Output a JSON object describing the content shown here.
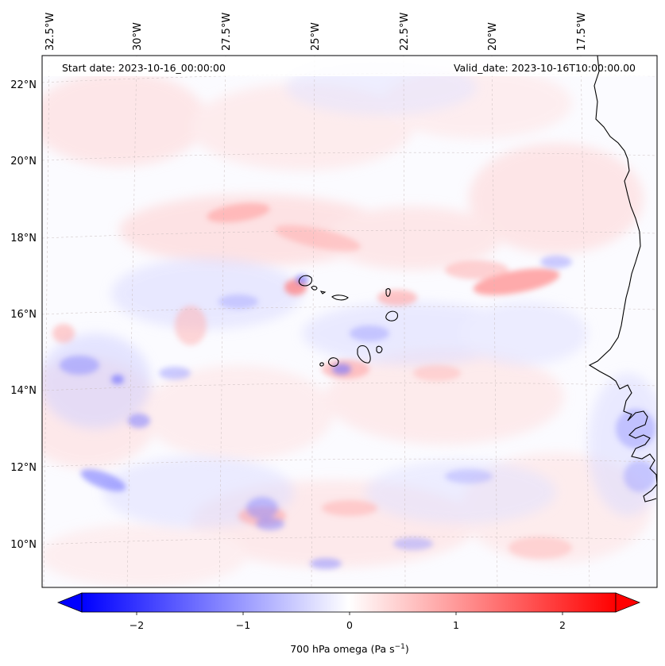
{
  "header": {
    "start_date": "Start date: 2023-10-16_00:00:00",
    "valid_date": "Valid_date: 2023-10-16T10:00:00.00"
  },
  "longitude_ticks": [
    "32.5°W",
    "30°W",
    "27.5°W",
    "25°W",
    "22.5°W",
    "20°W",
    "17.5°W"
  ],
  "latitude_ticks": [
    "22°N",
    "20°N",
    "18°N",
    "16°N",
    "14°N",
    "12°N",
    "10°N"
  ],
  "colorbar": {
    "tick_labels": [
      "−2",
      "−1",
      "0",
      "1",
      "2"
    ],
    "title": "700 hPa omega (Pa s",
    "title_sup": "−1",
    "title_close": ")",
    "colors": {
      "negative": "#0000ff",
      "neutral": "#ffffff",
      "positive": "#ff0000"
    }
  },
  "chart_data": {
    "type": "heatmap",
    "variable": "700 hPa omega",
    "units": "Pa s^-1",
    "colormap": "bwr",
    "vmin": -2.6,
    "vmax": 2.6,
    "lon_range": [
      -33.0,
      -15.5
    ],
    "lat_range": [
      9.0,
      22.8
    ]
  }
}
